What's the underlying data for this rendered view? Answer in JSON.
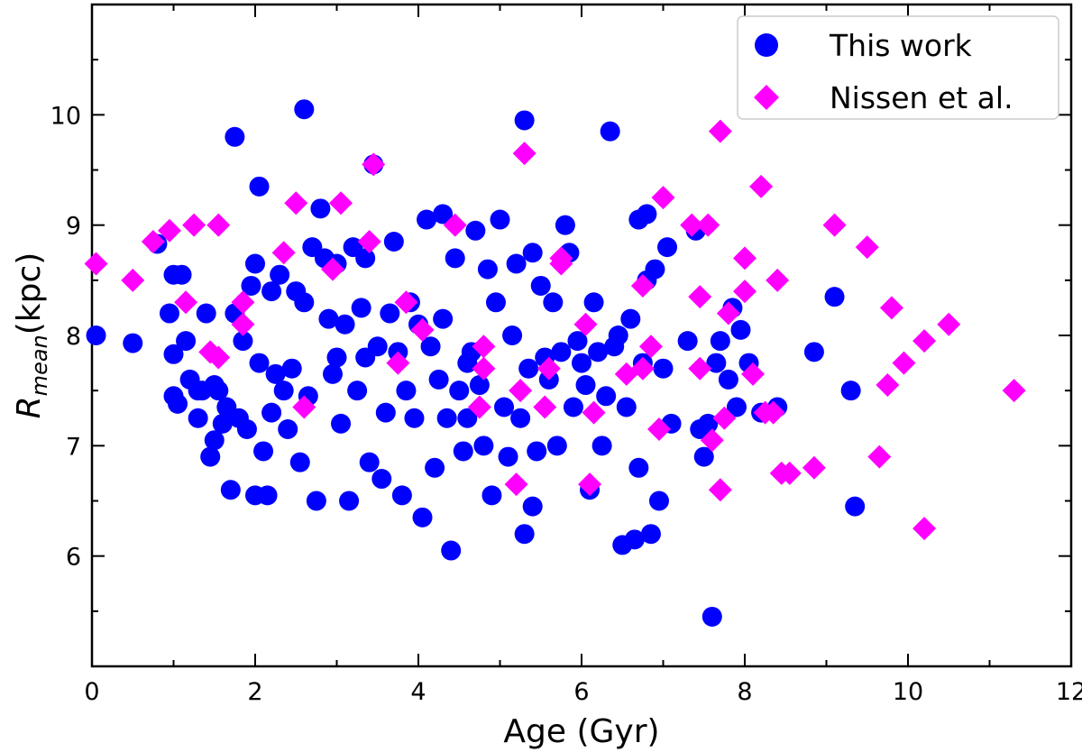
{
  "chart_data": {
    "type": "scatter",
    "title": "",
    "xlabel": "Age (Gyr)",
    "ylabel_main": "R",
    "ylabel_sub": "mean",
    "ylabel_rest": "(kpc)",
    "xlim": [
      0,
      12
    ],
    "ylim": [
      5.0,
      11.0
    ],
    "xticks": [
      0,
      2,
      4,
      6,
      8,
      10,
      12
    ],
    "yticks": [
      6,
      7,
      8,
      9,
      10
    ],
    "legend_position": "top-right",
    "series": [
      {
        "name": "This work",
        "marker": "circle",
        "color": "#0000ff",
        "points": [
          [
            0.05,
            8.0
          ],
          [
            0.5,
            7.93
          ],
          [
            0.8,
            8.83
          ],
          [
            1.0,
            8.55
          ],
          [
            1.1,
            8.55
          ],
          [
            0.95,
            8.2
          ],
          [
            1.0,
            7.83
          ],
          [
            1.0,
            7.45
          ],
          [
            1.05,
            7.38
          ],
          [
            1.15,
            7.95
          ],
          [
            1.2,
            7.6
          ],
          [
            1.3,
            7.5
          ],
          [
            1.3,
            7.25
          ],
          [
            1.35,
            7.5
          ],
          [
            1.4,
            8.2
          ],
          [
            1.45,
            6.9
          ],
          [
            1.5,
            7.05
          ],
          [
            1.55,
            7.5
          ],
          [
            1.6,
            7.2
          ],
          [
            1.65,
            7.35
          ],
          [
            1.7,
            6.6
          ],
          [
            1.75,
            8.2
          ],
          [
            1.75,
            9.8
          ],
          [
            1.8,
            7.25
          ],
          [
            1.85,
            7.95
          ],
          [
            1.9,
            7.15
          ],
          [
            1.95,
            8.45
          ],
          [
            2.0,
            8.65
          ],
          [
            2.05,
            7.75
          ],
          [
            2.1,
            6.95
          ],
          [
            2.0,
            6.55
          ],
          [
            2.15,
            6.55
          ],
          [
            2.2,
            7.3
          ],
          [
            2.25,
            7.65
          ],
          [
            2.3,
            8.55
          ],
          [
            2.35,
            7.5
          ],
          [
            2.4,
            7.15
          ],
          [
            2.45,
            7.7
          ],
          [
            2.5,
            8.4
          ],
          [
            2.55,
            6.85
          ],
          [
            2.6,
            8.3
          ],
          [
            2.65,
            7.45
          ],
          [
            2.7,
            8.8
          ],
          [
            2.75,
            6.5
          ],
          [
            2.8,
            9.15
          ],
          [
            2.85,
            8.7
          ],
          [
            2.9,
            8.15
          ],
          [
            2.95,
            7.65
          ],
          [
            3.0,
            7.8
          ],
          [
            3.05,
            7.2
          ],
          [
            3.1,
            8.1
          ],
          [
            3.15,
            6.5
          ],
          [
            3.2,
            8.8
          ],
          [
            3.25,
            7.5
          ],
          [
            3.3,
            8.25
          ],
          [
            3.35,
            7.8
          ],
          [
            3.4,
            6.85
          ],
          [
            3.45,
            9.55
          ],
          [
            3.5,
            7.9
          ],
          [
            3.55,
            6.7
          ],
          [
            3.6,
            7.3
          ],
          [
            3.65,
            8.2
          ],
          [
            3.7,
            8.85
          ],
          [
            3.75,
            7.85
          ],
          [
            3.8,
            6.55
          ],
          [
            3.85,
            7.5
          ],
          [
            3.9,
            8.3
          ],
          [
            3.95,
            7.25
          ],
          [
            4.0,
            8.1
          ],
          [
            4.05,
            6.35
          ],
          [
            4.1,
            9.05
          ],
          [
            4.15,
            7.9
          ],
          [
            4.2,
            6.8
          ],
          [
            4.25,
            7.6
          ],
          [
            4.3,
            9.1
          ],
          [
            4.35,
            7.25
          ],
          [
            4.4,
            6.05
          ],
          [
            4.45,
            8.7
          ],
          [
            4.5,
            7.5
          ],
          [
            4.55,
            6.95
          ],
          [
            4.6,
            7.25
          ],
          [
            4.65,
            7.85
          ],
          [
            4.7,
            8.95
          ],
          [
            4.75,
            7.55
          ],
          [
            4.8,
            7.0
          ],
          [
            4.85,
            8.6
          ],
          [
            4.9,
            6.55
          ],
          [
            4.95,
            8.3
          ],
          [
            5.0,
            9.05
          ],
          [
            5.05,
            7.35
          ],
          [
            5.1,
            6.9
          ],
          [
            5.15,
            8.0
          ],
          [
            5.2,
            8.65
          ],
          [
            5.25,
            7.25
          ],
          [
            5.3,
            9.95
          ],
          [
            5.35,
            7.7
          ],
          [
            5.4,
            8.75
          ],
          [
            5.45,
            6.95
          ],
          [
            5.5,
            8.45
          ],
          [
            5.55,
            7.8
          ],
          [
            5.3,
            6.2
          ],
          [
            5.4,
            6.45
          ],
          [
            5.6,
            7.6
          ],
          [
            5.65,
            8.3
          ],
          [
            5.7,
            7.0
          ],
          [
            5.75,
            7.85
          ],
          [
            5.8,
            9.0
          ],
          [
            5.85,
            8.75
          ],
          [
            5.9,
            7.35
          ],
          [
            5.95,
            7.95
          ],
          [
            6.0,
            7.75
          ],
          [
            6.05,
            7.55
          ],
          [
            6.1,
            6.6
          ],
          [
            6.15,
            8.3
          ],
          [
            6.2,
            7.85
          ],
          [
            6.25,
            7.0
          ],
          [
            6.3,
            7.45
          ],
          [
            6.35,
            9.85
          ],
          [
            6.4,
            7.9
          ],
          [
            6.45,
            8.0
          ],
          [
            6.5,
            6.1
          ],
          [
            6.55,
            7.35
          ],
          [
            6.6,
            8.15
          ],
          [
            6.65,
            6.15
          ],
          [
            6.7,
            6.8
          ],
          [
            6.75,
            7.75
          ],
          [
            6.8,
            8.5
          ],
          [
            6.85,
            6.2
          ],
          [
            6.9,
            8.6
          ],
          [
            6.95,
            6.5
          ],
          [
            7.0,
            7.7
          ],
          [
            7.05,
            8.8
          ],
          [
            7.1,
            7.2
          ],
          [
            7.3,
            7.95
          ],
          [
            7.45,
            7.15
          ],
          [
            7.5,
            6.9
          ],
          [
            7.55,
            7.2
          ],
          [
            7.6,
            5.45
          ],
          [
            7.65,
            7.75
          ],
          [
            7.7,
            7.95
          ],
          [
            7.8,
            7.6
          ],
          [
            7.85,
            8.25
          ],
          [
            7.9,
            7.35
          ],
          [
            7.95,
            8.05
          ],
          [
            8.05,
            7.75
          ],
          [
            8.2,
            7.3
          ],
          [
            8.4,
            7.35
          ],
          [
            8.85,
            7.85
          ],
          [
            9.1,
            8.35
          ],
          [
            9.3,
            7.5
          ],
          [
            9.35,
            6.45
          ],
          [
            6.8,
            9.1
          ],
          [
            6.7,
            9.05
          ],
          [
            7.4,
            8.95
          ],
          [
            4.6,
            7.75
          ],
          [
            4.3,
            8.15
          ],
          [
            3.35,
            8.7
          ],
          [
            3.0,
            8.65
          ],
          [
            2.2,
            8.4
          ],
          [
            1.5,
            7.55
          ],
          [
            2.6,
            10.05
          ],
          [
            2.05,
            9.35
          ]
        ]
      },
      {
        "name": "Nissen et al.",
        "marker": "diamond",
        "color": "#ff00ff",
        "points": [
          [
            0.05,
            8.65
          ],
          [
            0.5,
            8.5
          ],
          [
            0.75,
            8.85
          ],
          [
            0.95,
            8.95
          ],
          [
            1.15,
            8.3
          ],
          [
            1.25,
            9.0
          ],
          [
            1.45,
            7.85
          ],
          [
            1.55,
            9.0
          ],
          [
            1.55,
            7.8
          ],
          [
            1.85,
            8.1
          ],
          [
            1.85,
            8.3
          ],
          [
            2.35,
            8.75
          ],
          [
            2.5,
            9.2
          ],
          [
            2.6,
            7.35
          ],
          [
            2.95,
            8.6
          ],
          [
            3.05,
            9.2
          ],
          [
            3.4,
            8.85
          ],
          [
            3.45,
            9.55
          ],
          [
            3.75,
            7.75
          ],
          [
            3.85,
            8.3
          ],
          [
            4.05,
            8.05
          ],
          [
            4.45,
            9.0
          ],
          [
            4.75,
            7.35
          ],
          [
            4.8,
            7.7
          ],
          [
            4.8,
            7.9
          ],
          [
            5.2,
            6.65
          ],
          [
            5.25,
            7.5
          ],
          [
            5.3,
            9.65
          ],
          [
            5.55,
            7.35
          ],
          [
            5.6,
            7.7
          ],
          [
            5.75,
            8.7
          ],
          [
            5.75,
            8.65
          ],
          [
            6.05,
            8.1
          ],
          [
            6.1,
            6.65
          ],
          [
            6.15,
            7.3
          ],
          [
            6.55,
            7.65
          ],
          [
            6.75,
            8.45
          ],
          [
            6.75,
            7.7
          ],
          [
            6.85,
            7.9
          ],
          [
            6.95,
            7.15
          ],
          [
            7.0,
            9.25
          ],
          [
            7.35,
            9.0
          ],
          [
            7.45,
            8.35
          ],
          [
            7.45,
            7.7
          ],
          [
            7.55,
            9.0
          ],
          [
            7.6,
            7.05
          ],
          [
            7.7,
            9.85
          ],
          [
            7.7,
            6.6
          ],
          [
            7.75,
            7.25
          ],
          [
            7.8,
            8.2
          ],
          [
            8.0,
            8.7
          ],
          [
            8.0,
            8.4
          ],
          [
            8.1,
            7.65
          ],
          [
            8.2,
            9.35
          ],
          [
            8.25,
            7.3
          ],
          [
            8.35,
            7.3
          ],
          [
            8.4,
            8.5
          ],
          [
            8.45,
            6.75
          ],
          [
            8.55,
            6.75
          ],
          [
            8.85,
            6.8
          ],
          [
            9.1,
            9.0
          ],
          [
            9.5,
            8.8
          ],
          [
            9.65,
            6.9
          ],
          [
            9.75,
            7.55
          ],
          [
            9.8,
            8.25
          ],
          [
            9.95,
            7.75
          ],
          [
            10.2,
            7.95
          ],
          [
            10.2,
            6.25
          ],
          [
            10.5,
            8.1
          ],
          [
            11.3,
            7.5
          ]
        ]
      }
    ]
  }
}
